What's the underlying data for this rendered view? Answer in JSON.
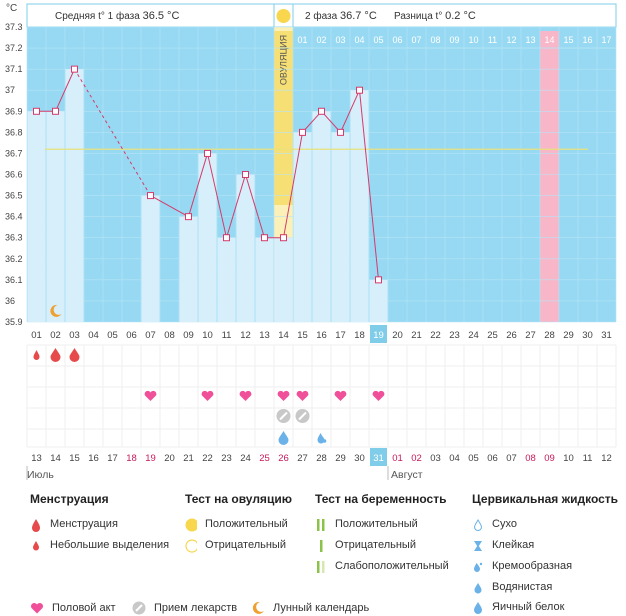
{
  "header": {
    "phase1_label": "Средняя t° 1 фаза",
    "phase1_value": "36.5 °C",
    "phase2_label": "2 фаза",
    "phase2_value": "36.7 °C",
    "diff_label": "Разница t°",
    "diff_value": "0.2 °C"
  },
  "ovulation_label": "ОВУЛЯЦИЯ",
  "months": {
    "first": "Июль",
    "second": "Август"
  },
  "chart_data": {
    "type": "bar",
    "ylabel": "°C",
    "ylim": [
      35.9,
      37.3
    ],
    "yticks": [
      "37.3",
      "37.2",
      "37.1",
      "37",
      "36.9",
      "36.8",
      "36.7",
      "36.6",
      "36.5",
      "36.4",
      "36.3",
      "36.2",
      "36.1",
      "36",
      "35.9"
    ],
    "cycle_days": [
      "01",
      "02",
      "03",
      "04",
      "05",
      "06",
      "07",
      "08",
      "09",
      "10",
      "11",
      "12",
      "13",
      "14",
      "15",
      "16",
      "17",
      "18",
      "19",
      "20",
      "21",
      "22",
      "23",
      "24",
      "25",
      "26",
      "27",
      "28",
      "29",
      "30",
      "31"
    ],
    "calendar_dates": [
      "13",
      "14",
      "15",
      "16",
      "17",
      "18",
      "19",
      "20",
      "21",
      "22",
      "23",
      "24",
      "25",
      "26",
      "27",
      "28",
      "29",
      "30",
      "31",
      "01",
      "02",
      "03",
      "04",
      "05",
      "06",
      "07",
      "08",
      "09",
      "10",
      "11",
      "12"
    ],
    "weekend_dates_idx": [
      5,
      6,
      12,
      13,
      19,
      20,
      26,
      27
    ],
    "temperatures": [
      36.9,
      36.9,
      37.1,
      null,
      null,
      null,
      36.5,
      null,
      36.4,
      36.7,
      36.3,
      36.6,
      36.3,
      36.3,
      36.8,
      36.9,
      36.8,
      37.0,
      36.1,
      null,
      null,
      null,
      null,
      null,
      null,
      null,
      null,
      null,
      null,
      null,
      null
    ],
    "dashed_segments": [
      [
        3,
        7
      ]
    ],
    "coverline": 36.72,
    "ovulation_day": 14,
    "current_day": 19,
    "top_days": [
      "01",
      "02",
      "03",
      "04",
      "05",
      "06",
      "07",
      "08",
      "09",
      "10",
      "11",
      "12",
      "13",
      "14",
      "15",
      "16",
      "17"
    ],
    "pink_top_day": 14,
    "menstruation": [
      {
        "day": 1,
        "kind": "small"
      },
      {
        "day": 2,
        "kind": "full"
      },
      {
        "day": 3,
        "kind": "full"
      }
    ],
    "intercourse_days": [
      7,
      10,
      12,
      14,
      15,
      17,
      19
    ],
    "medication_days": [
      14,
      15
    ],
    "fluid": [
      {
        "day": 14,
        "kind": "egg-white"
      },
      {
        "day": 16,
        "kind": "watery"
      }
    ],
    "moon_day": 2
  },
  "legend": {
    "menstruation": {
      "title": "Менструация",
      "items": [
        "Менструация",
        "Небольшие выделения"
      ]
    },
    "ovulation_test": {
      "title": "Тест на овуляцию",
      "items": [
        "Положительный",
        "Отрицательный"
      ]
    },
    "pregnancy_test": {
      "title": "Тест на беременность",
      "items": [
        "Положительный",
        "Отрицательный",
        "Слабоположительный"
      ]
    },
    "cervical": {
      "title": "Цервикальная жидкость",
      "items": [
        "Сухо",
        "Клейкая",
        "Кремообразная",
        "Водянистая",
        "Яичный белок"
      ]
    },
    "bottom": [
      "Половой акт",
      "Прием лекарств",
      "Лунный календарь"
    ]
  },
  "colors": {
    "plot_bg": "#97d9f2",
    "bar_fill": "#d6effb",
    "line": "#d63a6b",
    "ovulation": "#fbf0b8",
    "pink": "#f8b6c9",
    "coverline": "#e8e27a",
    "blood": "#e64a4a",
    "heart": "#f0509a",
    "drop": "#6ab2e8"
  }
}
